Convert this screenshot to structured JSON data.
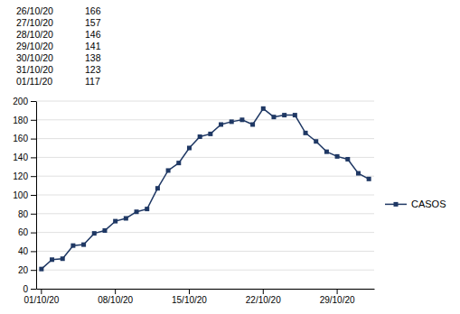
{
  "chart_data": {
    "type": "line",
    "categories": [
      "01/10/20",
      null,
      null,
      null,
      null,
      null,
      null,
      "08/10/20",
      null,
      null,
      null,
      null,
      null,
      null,
      "15/10/20",
      null,
      null,
      null,
      null,
      null,
      null,
      "22/10/20",
      null,
      null,
      null,
      null,
      null,
      null,
      "29/10/20",
      null,
      null,
      null
    ],
    "series": [
      {
        "name": "CASOS",
        "color": "#1F3864",
        "marker": "square",
        "values": [
          21,
          31,
          32,
          46,
          47,
          59,
          62,
          72,
          75,
          82,
          85,
          107,
          126,
          134,
          150,
          162,
          165,
          175,
          178,
          180,
          175,
          192,
          183,
          185,
          185,
          166,
          157,
          146,
          141,
          138,
          123,
          117
        ]
      }
    ],
    "ylim": [
      0,
      200
    ],
    "yticks": [
      0,
      20,
      40,
      60,
      80,
      100,
      120,
      140,
      160,
      180,
      200
    ],
    "grid": true,
    "legend": "right",
    "table": {
      "dates": [
        "26/10/20",
        "27/10/20",
        "28/10/20",
        "29/10/20",
        "30/10/20",
        "31/10/20",
        "01/11/20"
      ],
      "values": [
        166,
        157,
        146,
        141,
        138,
        123,
        117
      ]
    }
  }
}
